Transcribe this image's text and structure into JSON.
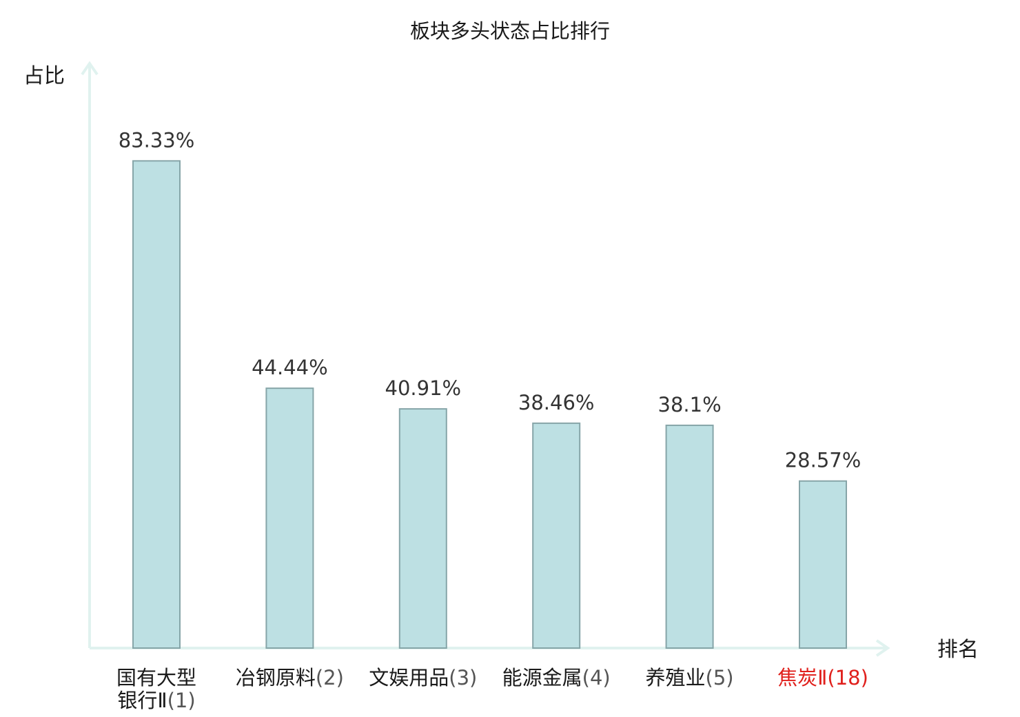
{
  "chart_data": {
    "type": "bar",
    "title": "板块多头状态占比排行",
    "ylabel": "占比",
    "xlabel": "排名",
    "ylim": [
      0,
      100
    ],
    "grid": false,
    "legend": "none",
    "categories": [
      {
        "name_lines": [
          "国有大型",
          "银行Ⅱ"
        ],
        "rank": "(1)",
        "highlight": false
      },
      {
        "name_lines": [
          "冶钢原料"
        ],
        "rank": "(2)",
        "highlight": false
      },
      {
        "name_lines": [
          "文娱用品"
        ],
        "rank": "(3)",
        "highlight": false
      },
      {
        "name_lines": [
          "能源金属"
        ],
        "rank": "(4)",
        "highlight": false
      },
      {
        "name_lines": [
          "养殖业"
        ],
        "rank": "(5)",
        "highlight": false
      },
      {
        "name_lines": [
          "焦炭Ⅱ"
        ],
        "rank": "(18)",
        "highlight": true
      }
    ],
    "values": [
      83.33,
      44.44,
      40.91,
      38.46,
      38.1,
      28.57
    ],
    "value_labels": [
      "83.33%",
      "44.44%",
      "40.91%",
      "38.46%",
      "38.1%",
      "28.57%"
    ],
    "colors": {
      "bar_fill": "#bde0e3",
      "bar_stroke": "#86a5a8",
      "axis": "#e0f2ef",
      "highlight_text": "#e0201c",
      "rank_text": "#555555",
      "label_text": "#1a1a1a"
    }
  }
}
